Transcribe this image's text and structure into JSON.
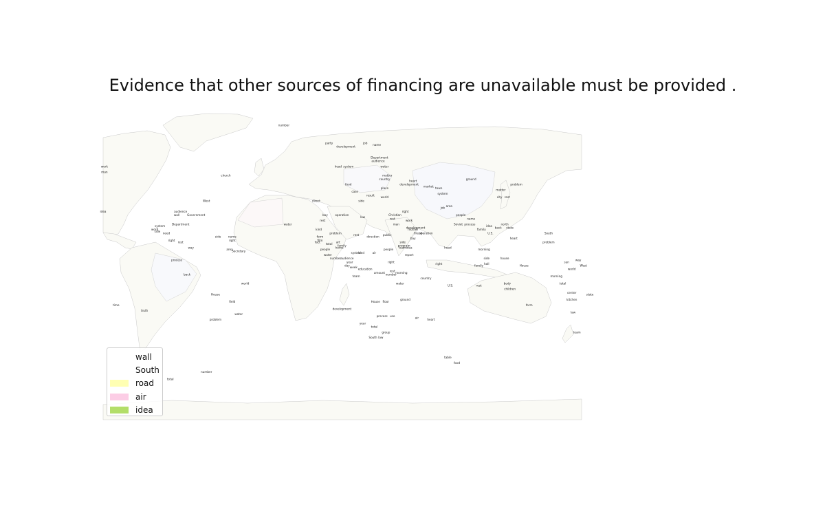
{
  "title": "Evidence that other sources of financing are unavailable must be provided .",
  "legend": [
    {
      "label": "wall",
      "color": "#ffffff"
    },
    {
      "label": "South",
      "color": "#ffffff"
    },
    {
      "label": "road",
      "color": "#ffffb3"
    },
    {
      "label": "air",
      "color": "#fccde5"
    },
    {
      "label": "idea",
      "color": "#b3de69"
    }
  ],
  "colors": {
    "land": "#fafaf5",
    "border": "#c8c8c8",
    "background": "#ffffff"
  },
  "place_labels": [
    {
      "text": "number",
      "lon": -40,
      "lat": 78
    },
    {
      "text": "party",
      "lon": -5,
      "lat": 68
    },
    {
      "text": "development",
      "lon": 8,
      "lat": 66
    },
    {
      "text": "job",
      "lon": 23,
      "lat": 68
    },
    {
      "text": "name",
      "lon": 32,
      "lat": 67
    },
    {
      "text": "work",
      "lon": -179,
      "lat": 55
    },
    {
      "text": "man",
      "lon": -179,
      "lat": 52
    },
    {
      "text": "church",
      "lon": -85,
      "lat": 50
    },
    {
      "text": "head",
      "lon": 2,
      "lat": 55
    },
    {
      "text": "system",
      "lon": 10,
      "lat": 55
    },
    {
      "text": "Department",
      "lon": 34,
      "lat": 60
    },
    {
      "text": "audience",
      "lon": 33,
      "lat": 58
    },
    {
      "text": "water",
      "lon": 38,
      "lat": 55
    },
    {
      "text": "ground",
      "lon": 105,
      "lat": 48
    },
    {
      "text": "problem",
      "lon": 140,
      "lat": 45
    },
    {
      "text": "development",
      "lon": 57,
      "lat": 45
    },
    {
      "text": "heart",
      "lon": 60,
      "lat": 47
    },
    {
      "text": "matter",
      "lon": 40,
      "lat": 50
    },
    {
      "text": "country",
      "lon": 38,
      "lat": 48
    },
    {
      "text": "market",
      "lon": 72,
      "lat": 44
    },
    {
      "text": "town",
      "lon": 80,
      "lat": 43
    },
    {
      "text": "system",
      "lon": 83,
      "lat": 40
    },
    {
      "text": "matter",
      "lon": 128,
      "lat": 42
    },
    {
      "text": "city",
      "lon": 127,
      "lat": 38
    },
    {
      "text": "rest",
      "lon": 133,
      "lat": 38
    },
    {
      "text": "West",
      "lon": -100,
      "lat": 36
    },
    {
      "text": "direct",
      "lon": -15,
      "lat": 36
    },
    {
      "text": "place",
      "lon": 38,
      "lat": 43
    },
    {
      "text": "world",
      "lon": 38,
      "lat": 38
    },
    {
      "text": "result",
      "lon": 27,
      "lat": 39
    },
    {
      "text": "side",
      "lon": 20,
      "lat": 36
    },
    {
      "text": "case",
      "lon": 15,
      "lat": 41
    },
    {
      "text": "food",
      "lon": 10,
      "lat": 45
    },
    {
      "text": "idea",
      "lon": -180,
      "lat": 30
    },
    {
      "text": "audience",
      "lon": -120,
      "lat": 30
    },
    {
      "text": "Government",
      "lon": -108,
      "lat": 28
    },
    {
      "text": "wall",
      "lon": -123,
      "lat": 28
    },
    {
      "text": "Department",
      "lon": -120,
      "lat": 23
    },
    {
      "text": "system",
      "lon": -136,
      "lat": 22
    },
    {
      "text": "word",
      "lon": -140,
      "lat": 20
    },
    {
      "text": "side",
      "lon": -138,
      "lat": 19
    },
    {
      "text": "need",
      "lon": -131,
      "lat": 18
    },
    {
      "text": "right",
      "lon": -127,
      "lat": 14
    },
    {
      "text": "rest",
      "lon": -120,
      "lat": 13
    },
    {
      "text": "way",
      "lon": -112,
      "lat": 10
    },
    {
      "text": "side",
      "lon": -91,
      "lat": 16
    },
    {
      "text": "name",
      "lon": -80,
      "lat": 16
    },
    {
      "text": "right",
      "lon": -80,
      "lat": 14
    },
    {
      "text": "area",
      "lon": -82,
      "lat": 9
    },
    {
      "text": "Secretary",
      "lon": -75,
      "lat": 8
    },
    {
      "text": "process",
      "lon": -123,
      "lat": 3
    },
    {
      "text": "back",
      "lon": -115,
      "lat": -5
    },
    {
      "text": "world",
      "lon": -70,
      "lat": -10
    },
    {
      "text": "House",
      "lon": -93,
      "lat": -16
    },
    {
      "text": "field",
      "lon": -80,
      "lat": -20
    },
    {
      "text": "water",
      "lon": -75,
      "lat": -27
    },
    {
      "text": "problem",
      "lon": -93,
      "lat": -30
    },
    {
      "text": "time",
      "lon": -170,
      "lat": -22
    },
    {
      "text": "truth",
      "lon": -148,
      "lat": -25
    },
    {
      "text": "water",
      "lon": -37,
      "lat": 23
    },
    {
      "text": "operation",
      "lon": 5,
      "lat": 28
    },
    {
      "text": "law",
      "lon": 21,
      "lat": 27
    },
    {
      "text": "boy",
      "lon": -8,
      "lat": 28
    },
    {
      "text": "rest",
      "lon": -10,
      "lat": 25
    },
    {
      "text": "kind",
      "lon": -13,
      "lat": 20
    },
    {
      "text": "problem",
      "lon": 0,
      "lat": 18
    },
    {
      "text": "form",
      "lon": -12,
      "lat": 16
    },
    {
      "text": "film",
      "lon": -12,
      "lat": 14
    },
    {
      "text": "fact",
      "lon": -14,
      "lat": 13
    },
    {
      "text": "total",
      "lon": -5,
      "lat": 12
    },
    {
      "text": "art",
      "lon": 2,
      "lat": 13
    },
    {
      "text": "family",
      "lon": 5,
      "lat": 11
    },
    {
      "text": "home",
      "lon": 3,
      "lat": 10
    },
    {
      "text": "people",
      "lon": -8,
      "lat": 9
    },
    {
      "text": "water",
      "lon": -6,
      "lat": 6
    },
    {
      "text": "number",
      "lon": 0,
      "lat": 4
    },
    {
      "text": "audience",
      "lon": 9,
      "lat": 4
    },
    {
      "text": "year",
      "lon": 11,
      "lat": 2
    },
    {
      "text": "day",
      "lon": 9,
      "lat": 0
    },
    {
      "text": "system",
      "lon": 16,
      "lat": 7
    },
    {
      "text": "kind",
      "lon": 20,
      "lat": 7
    },
    {
      "text": "air",
      "lon": 30,
      "lat": 7
    },
    {
      "text": "rest",
      "lon": 16,
      "lat": 17
    },
    {
      "text": "direction",
      "lon": 29,
      "lat": 16
    },
    {
      "text": "public",
      "lon": 40,
      "lat": 17
    },
    {
      "text": "people",
      "lon": 41,
      "lat": 9
    },
    {
      "text": "team",
      "lon": 52,
      "lat": 10
    },
    {
      "text": "report",
      "lon": 57,
      "lat": 6
    },
    {
      "text": "right",
      "lon": 43,
      "lat": 2
    },
    {
      "text": "amount",
      "lon": 34,
      "lat": -4
    },
    {
      "text": "rest",
      "lon": 44,
      "lat": -3
    },
    {
      "text": "number",
      "lon": 43,
      "lat": -5
    },
    {
      "text": "morning",
      "lon": 51,
      "lat": -4
    },
    {
      "text": "water",
      "lon": 50,
      "lat": -10
    },
    {
      "text": "education",
      "lon": 23,
      "lat": -2
    },
    {
      "text": "week",
      "lon": 14,
      "lat": -1
    },
    {
      "text": "team",
      "lon": 16,
      "lat": -6
    },
    {
      "text": "country",
      "lon": 70,
      "lat": -7
    },
    {
      "text": "U.S.",
      "lon": 89,
      "lat": -11
    },
    {
      "text": "development",
      "lon": 5,
      "lat": -24
    },
    {
      "text": "House",
      "lon": 31,
      "lat": -20
    },
    {
      "text": "floor",
      "lon": 39,
      "lat": -20
    },
    {
      "text": "ground",
      "lon": 54,
      "lat": -19
    },
    {
      "text": "process",
      "lon": 36,
      "lat": -28
    },
    {
      "text": "use",
      "lon": 44,
      "lat": -28
    },
    {
      "text": "air",
      "lon": 63,
      "lat": -29
    },
    {
      "text": "heart",
      "lon": 74,
      "lat": -30
    },
    {
      "text": "year",
      "lon": 21,
      "lat": -32
    },
    {
      "text": "total",
      "lon": 30,
      "lat": -34
    },
    {
      "text": "group",
      "lon": 39,
      "lat": -37
    },
    {
      "text": "South",
      "lon": 29,
      "lat": -40
    },
    {
      "text": "law",
      "lon": 35,
      "lat": -40
    },
    {
      "text": "table",
      "lon": 87,
      "lat": -51
    },
    {
      "text": "food",
      "lon": 94,
      "lat": -54
    },
    {
      "text": "total",
      "lon": -128,
      "lat": -63
    },
    {
      "text": "number",
      "lon": -100,
      "lat": -59
    },
    {
      "text": "people",
      "lon": 97,
      "lat": 28
    },
    {
      "text": "name",
      "lon": 105,
      "lat": 26
    },
    {
      "text": "Soviet",
      "lon": 95,
      "lat": 23
    },
    {
      "text": "process",
      "lon": 104,
      "lat": 23
    },
    {
      "text": "family",
      "lon": 113,
      "lat": 20
    },
    {
      "text": "U.S.",
      "lon": 120,
      "lat": 18
    },
    {
      "text": "idea",
      "lon": 119,
      "lat": 22
    },
    {
      "text": "north",
      "lon": 131,
      "lat": 23
    },
    {
      "text": "state",
      "lon": 135,
      "lat": 21
    },
    {
      "text": "back",
      "lon": 126,
      "lat": 21
    },
    {
      "text": "heart",
      "lon": 138,
      "lat": 15
    },
    {
      "text": "South",
      "lon": 165,
      "lat": 18
    },
    {
      "text": "problem",
      "lon": 165,
      "lat": 13
    },
    {
      "text": "head",
      "lon": 87,
      "lat": 10
    },
    {
      "text": "morning",
      "lon": 115,
      "lat": 9
    },
    {
      "text": "side",
      "lon": 117,
      "lat": 4
    },
    {
      "text": "house",
      "lon": 131,
      "lat": 4
    },
    {
      "text": "hall",
      "lon": 117,
      "lat": 1
    },
    {
      "text": "family",
      "lon": 111,
      "lat": 0
    },
    {
      "text": "House",
      "lon": 146,
      "lat": 0
    },
    {
      "text": "right",
      "lon": 80,
      "lat": 1
    },
    {
      "text": "job",
      "lon": 83,
      "lat": 32
    },
    {
      "text": "area",
      "lon": 88,
      "lat": 33
    },
    {
      "text": "body",
      "lon": 133,
      "lat": -10
    },
    {
      "text": "children",
      "lon": 135,
      "lat": -13
    },
    {
      "text": "rest",
      "lon": 111,
      "lat": -11
    },
    {
      "text": "form",
      "lon": 150,
      "lat": -22
    },
    {
      "text": "morning",
      "lon": 171,
      "lat": -6
    },
    {
      "text": "total",
      "lon": 176,
      "lat": -10
    },
    {
      "text": "center",
      "lon": 183,
      "lat": -15
    },
    {
      "text": "kitchen",
      "lon": 183,
      "lat": -19
    },
    {
      "text": "state",
      "lon": 197,
      "lat": -16
    },
    {
      "text": "law",
      "lon": 184,
      "lat": -26
    },
    {
      "text": "team",
      "lon": 187,
      "lat": -37
    },
    {
      "text": "sun",
      "lon": 179,
      "lat": 2
    },
    {
      "text": "way",
      "lon": 188,
      "lat": 3
    },
    {
      "text": "West",
      "lon": 192,
      "lat": 0
    },
    {
      "text": "world",
      "lon": 183,
      "lat": -2
    },
    {
      "text": "development",
      "lon": 62,
      "lat": 21
    },
    {
      "text": "mother",
      "lon": 60,
      "lat": 20
    },
    {
      "text": "friend",
      "lon": 64,
      "lat": 18
    },
    {
      "text": "bay",
      "lon": 60,
      "lat": 15
    },
    {
      "text": "side",
      "lon": 52,
      "lat": 13
    },
    {
      "text": "program",
      "lon": 53,
      "lat": 11
    },
    {
      "text": "idea",
      "lon": 57,
      "lat": 10
    },
    {
      "text": "operation",
      "lon": 70,
      "lat": 18
    },
    {
      "text": "work",
      "lon": 57,
      "lat": 25
    },
    {
      "text": "right",
      "lon": 54,
      "lat": 30
    },
    {
      "text": "rest",
      "lon": 44,
      "lat": 26
    },
    {
      "text": "man",
      "lon": 47,
      "lat": 23
    },
    {
      "text": "Christian",
      "lon": 46,
      "lat": 28
    }
  ]
}
